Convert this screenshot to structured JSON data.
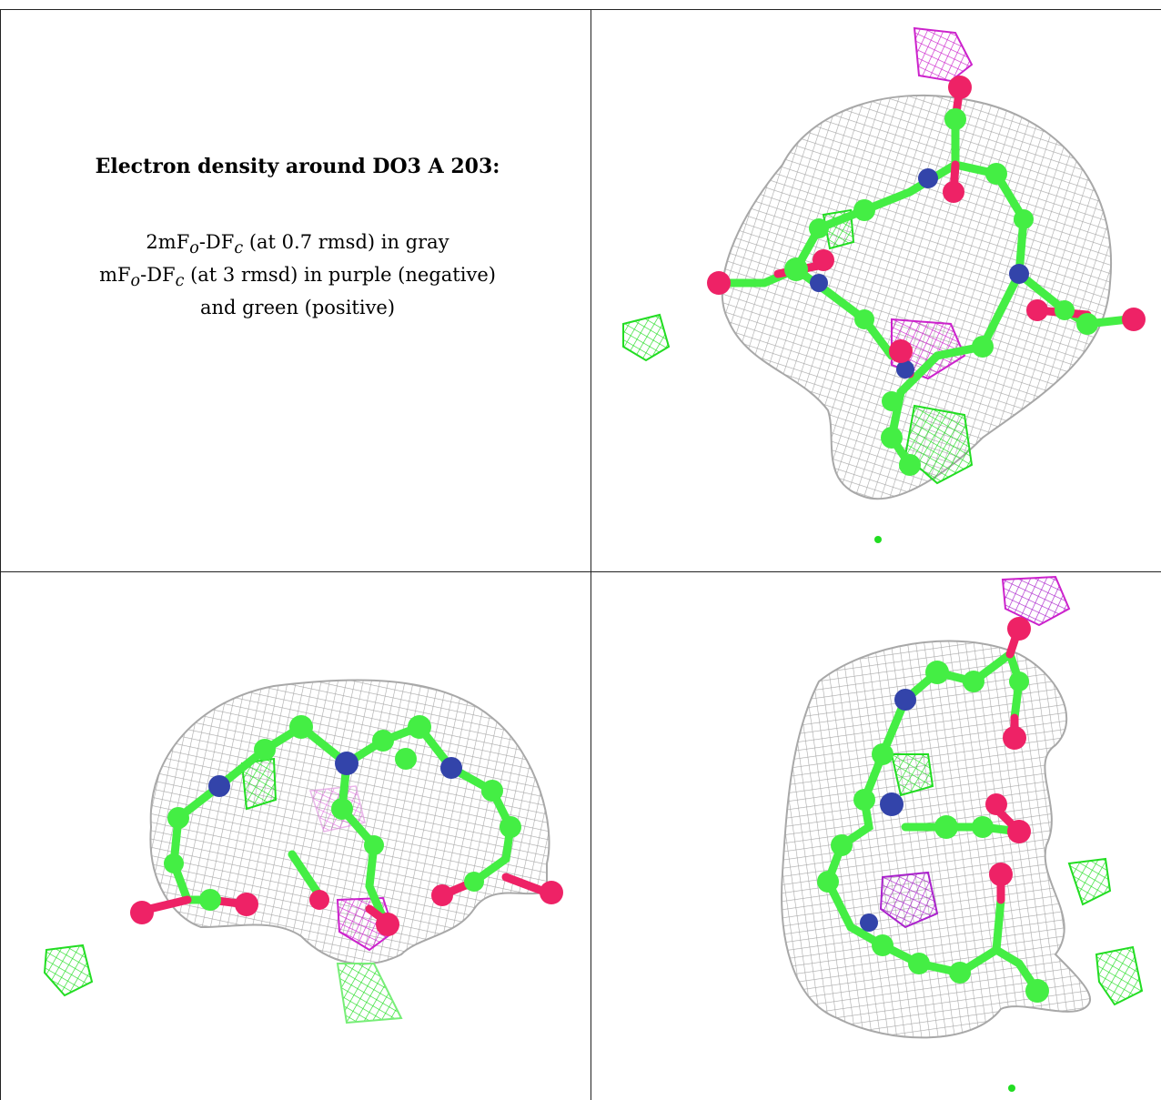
{
  "caption": {
    "title": "Electron density around DO3 A 203:",
    "line1_a": "2mF",
    "line1_sub1": "o",
    "line1_b": "-DF",
    "line1_sub2": "c",
    "line1_c": " (at 0.7 rmsd) in gray",
    "line2_a": "mF",
    "line2_sub1": "o",
    "line2_b": "-DF",
    "line2_sub2": "c",
    "line2_c": " (at 3 rmsd) in purple (negative)",
    "line3": "and green (positive)"
  },
  "colors": {
    "mesh_gray": "#a8a8a8",
    "carbon_green": "#44ee44",
    "nitrogen_blue": "#3344aa",
    "oxygen_red": "#ee2266",
    "negative_purple": "#cc22cc",
    "positive_green": "#22dd22"
  }
}
